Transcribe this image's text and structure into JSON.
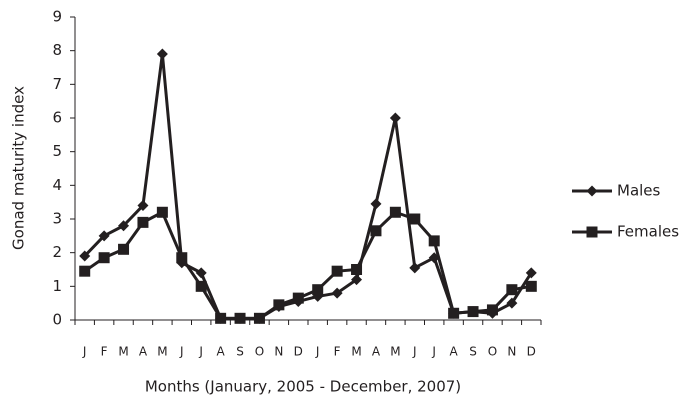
{
  "chart_data": {
    "type": "line",
    "x_label": "Months (January, 2005 - December, 2007)",
    "y_label": "Gonad maturity index",
    "categories": [
      "J",
      "F",
      "M",
      "A",
      "M",
      "J",
      "J",
      "A",
      "S",
      "O",
      "N",
      "D",
      "J",
      "F",
      "M",
      "A",
      "M",
      "J",
      "J",
      "A",
      "S",
      "O",
      "N",
      "D"
    ],
    "series": [
      {
        "name": "Males",
        "color": "#231f20",
        "marker": "diamond",
        "values": [
          1.9,
          2.5,
          2.8,
          3.4,
          7.9,
          1.7,
          1.4,
          0.05,
          0.05,
          0.05,
          0.4,
          0.55,
          0.7,
          0.8,
          1.2,
          3.45,
          6.0,
          1.55,
          1.85,
          0.2,
          0.25,
          0.2,
          0.5,
          1.4
        ]
      },
      {
        "name": "Females",
        "color": "#231f20",
        "marker": "square",
        "values": [
          1.45,
          1.85,
          2.1,
          2.9,
          3.2,
          1.85,
          1.0,
          0.05,
          0.05,
          0.05,
          0.45,
          0.65,
          0.9,
          1.45,
          1.5,
          2.65,
          3.2,
          3.0,
          2.35,
          0.2,
          0.25,
          0.3,
          0.9,
          1.0
        ]
      }
    ],
    "ylim": [
      0,
      9
    ],
    "yticks": [
      0,
      1,
      2,
      3,
      4,
      5,
      6,
      7,
      8,
      9
    ],
    "grid": false,
    "legend": "right"
  }
}
